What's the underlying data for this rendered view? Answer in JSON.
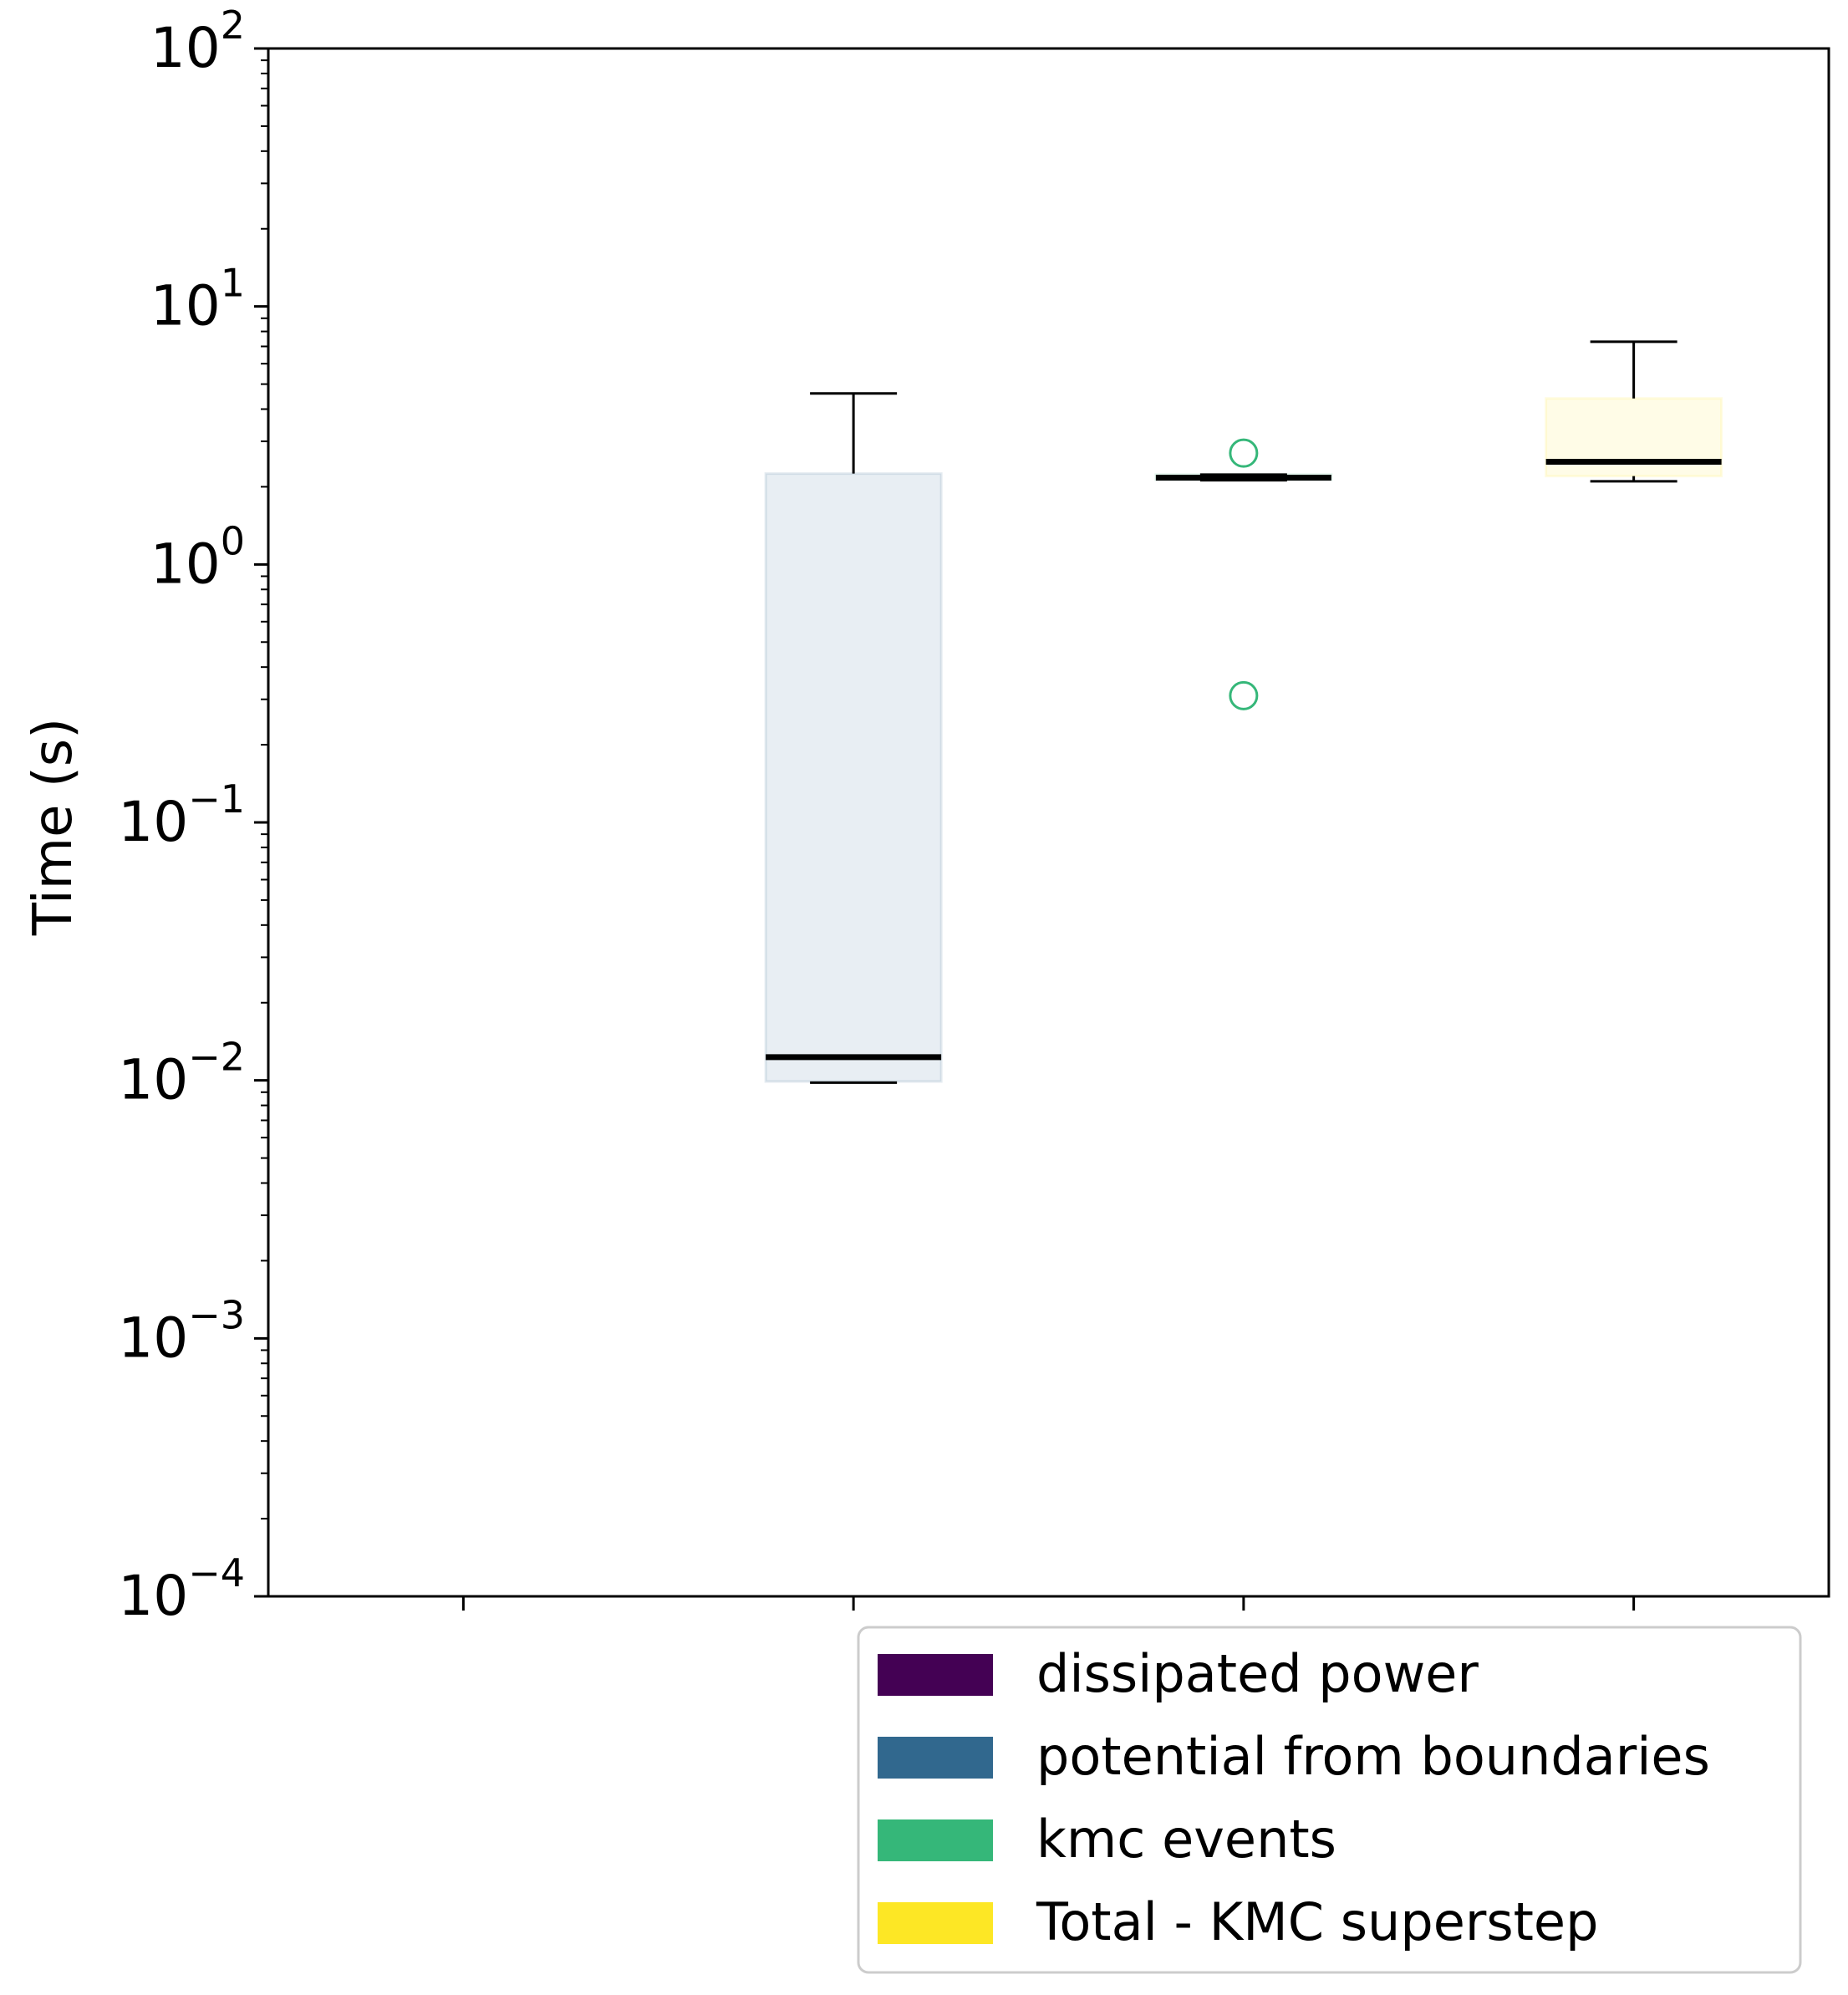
{
  "chart_data": {
    "type": "box",
    "title": "",
    "xlabel": "",
    "ylabel": "Time (s)",
    "yscale": "log",
    "ylim": [
      0.0001,
      100
    ],
    "ytick_values": [
      0.0001,
      0.001,
      0.01,
      0.1,
      1,
      10,
      100
    ],
    "ytick_labels": [
      {
        "base": "10",
        "exp": "−4"
      },
      {
        "base": "10",
        "exp": "−3"
      },
      {
        "base": "10",
        "exp": "−2"
      },
      {
        "base": "10",
        "exp": "−1"
      },
      {
        "base": "10",
        "exp": "0"
      },
      {
        "base": "10",
        "exp": "1"
      },
      {
        "base": "10",
        "exp": "2"
      }
    ],
    "x_positions": [
      1,
      2,
      3,
      4
    ],
    "xlim": [
      0.5,
      4.5
    ],
    "grid": false,
    "legend_position": "below-right",
    "series": [
      {
        "name": "dissipated power",
        "color": "#440154",
        "position": 1,
        "box": null
      },
      {
        "name": "potential from boundaries",
        "color": "#31688e",
        "position": 2,
        "box": {
          "whislo": 0.0098,
          "q1": 0.0099,
          "med": 0.0123,
          "q3": 2.25,
          "whishi": 4.6,
          "fliers": []
        }
      },
      {
        "name": "kmc events",
        "color": "#35b779",
        "position": 3,
        "box": {
          "whislo": 2.12,
          "q1": 2.13,
          "med": 2.17,
          "q3": 2.23,
          "whishi": 2.23,
          "fliers": [
            2.7,
            0.31
          ]
        }
      },
      {
        "name": "Total - KMC superstep",
        "color": "#fde725",
        "position": 4,
        "box": {
          "whislo": 2.1,
          "q1": 2.2,
          "med": 2.5,
          "q3": 4.4,
          "whishi": 7.3,
          "fliers": []
        }
      }
    ]
  }
}
